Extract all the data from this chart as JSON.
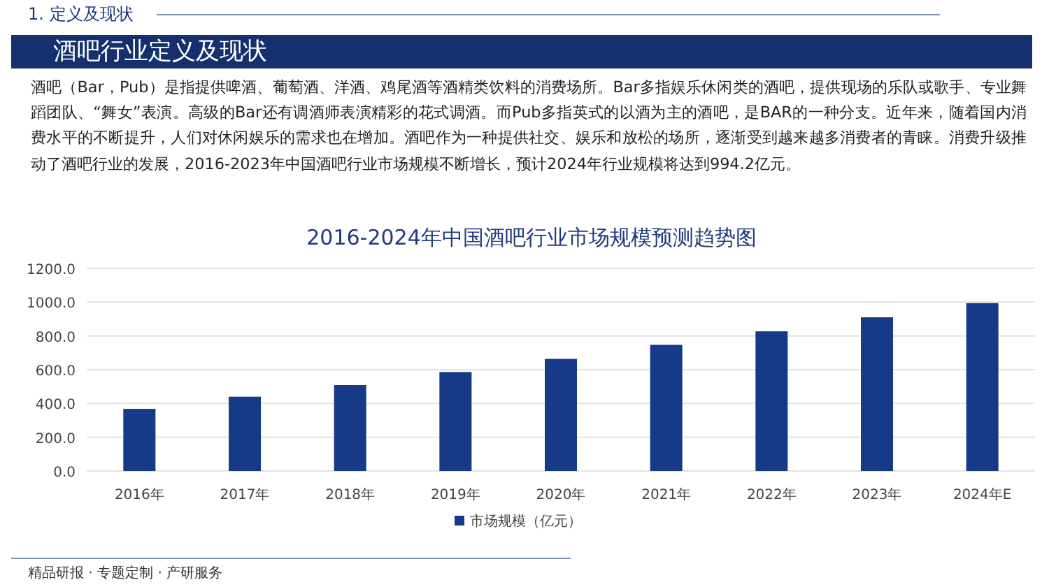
{
  "chart_data": {
    "type": "bar",
    "title": "2016-2024年中国酒吧行业市场规模预测趋势图",
    "categories": [
      "2016年",
      "2017年",
      "2018年",
      "2019年",
      "2020年",
      "2021年",
      "2022年",
      "2023年",
      "2024年E"
    ],
    "series": [
      {
        "name": "市场规模（亿元）",
        "color": "#163a87",
        "values": [
          368,
          440,
          509,
          586,
          664,
          747,
          827,
          910,
          994.2
        ]
      }
    ],
    "ylim": [
      0,
      1200
    ],
    "yticks": [
      {
        "value": 0,
        "label": "0.0"
      },
      {
        "value": 200,
        "label": "200.0"
      },
      {
        "value": 400,
        "label": "400.0"
      },
      {
        "value": 600,
        "label": "600.0"
      },
      {
        "value": 800,
        "label": "800.0"
      },
      {
        "value": 1000,
        "label": "1000.0"
      },
      {
        "value": 1200,
        "label": "1200.0"
      }
    ],
    "grid": "y",
    "legend": "bottom",
    "annotations": [
      "1. 定义及现状",
      "酒吧行业定义及现状",
      "酒吧（Bar，Pub）是指提供啤酒、葡萄酒、洋酒、鸡尾酒等酒精类饮料的消费场所。Bar多指娱乐休闲类的酒吧，提供现场的乐队或歌手、专业舞蹈团队、“舞女”表演。高级的Bar还有调酒师表演精彩的花式调酒。而Pub多指英式的以酒为主的酒吧，是BAR的一种分支。近年来，随着国内消费水平的不断提升，人们对休闲娱乐的需求也在增加。酒吧作为一种提供社交、娱乐和放松的场所，逐渐受到越来越多消费者的青睐。消费升级推动了酒吧行业的发展，2016-2023年中国酒吧行业市场规模不断增长，预计2024年行业规模将达到994.2亿元。",
      "精品研报 · 专题定制 · 产研服务"
    ]
  }
}
